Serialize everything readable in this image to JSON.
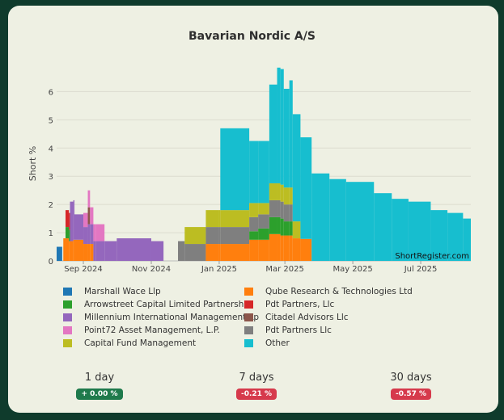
{
  "chart_data": {
    "type": "bar",
    "stacked": true,
    "title": "Bavarian Nordic A/S",
    "xlabel": "",
    "ylabel": "Short %",
    "ylim": [
      0,
      6.9
    ],
    "yticks": [
      0,
      1,
      2,
      3,
      4,
      5,
      6
    ],
    "x_range": [
      "2024-08-08",
      "2025-08-15"
    ],
    "x_ticks": [
      {
        "label": "Sep 2024",
        "date": "2024-09-01"
      },
      {
        "label": "Nov 2024",
        "date": "2024-11-01"
      },
      {
        "label": "Jan 2025",
        "date": "2025-01-01"
      },
      {
        "label": "Mar 2025",
        "date": "2025-03-01"
      },
      {
        "label": "May 2025",
        "date": "2025-05-01"
      },
      {
        "label": "Jul 2025",
        "date": "2025-07-01"
      }
    ],
    "grid": true,
    "legend_position": "bottom",
    "watermark": "ShortRegister.com",
    "series": [
      {
        "name": "Marshall Wace Llp",
        "color": "#1f77b4",
        "points": [
          [
            "2024-08-08",
            "2024-08-13",
            0.5
          ]
        ]
      },
      {
        "name": "Qube Research & Technologies Ltd",
        "color": "#ff7f0e",
        "points": [
          [
            "2024-08-14",
            "2024-08-19",
            0.8
          ],
          [
            "2024-08-19",
            "2024-08-23",
            0.7
          ],
          [
            "2024-08-23",
            "2024-09-01",
            0.75
          ],
          [
            "2024-09-01",
            "2024-09-10",
            0.6
          ],
          [
            "2024-12-20",
            "2025-01-28",
            0.6
          ],
          [
            "2025-01-28",
            "2025-02-15",
            0.75
          ],
          [
            "2025-02-15",
            "2025-02-25",
            0.95
          ],
          [
            "2025-02-25",
            "2025-03-08",
            0.9
          ],
          [
            "2025-03-08",
            "2025-03-15",
            0.8
          ],
          [
            "2025-03-15",
            "2025-03-25",
            0.78
          ]
        ]
      },
      {
        "name": "Arrowstreet Capital Limited Partnership",
        "color": "#2ca02c",
        "points": [
          [
            "2024-08-16",
            "2024-08-20",
            0.4
          ],
          [
            "2025-01-28",
            "2025-02-05",
            0.3
          ],
          [
            "2025-02-05",
            "2025-02-15",
            0.4
          ],
          [
            "2025-02-15",
            "2025-02-28",
            0.6
          ],
          [
            "2025-02-28",
            "2025-03-08",
            0.5
          ]
        ]
      },
      {
        "name": "Pdt Partners, Llc",
        "color": "#d62728",
        "points": [
          [
            "2024-08-16",
            "2024-08-20",
            0.6
          ]
        ]
      },
      {
        "name": "Millennium International Management Lp",
        "color": "#9467bd",
        "points": [
          [
            "2024-08-20",
            "2024-08-24",
            1.4
          ],
          [
            "2024-08-24",
            "2024-09-01",
            0.9
          ],
          [
            "2024-09-01",
            "2024-09-05",
            0.6
          ],
          [
            "2024-09-05",
            "2024-09-12",
            0.7
          ],
          [
            "2024-09-12",
            "2024-10-01",
            0.7
          ],
          [
            "2024-10-01",
            "2024-11-01",
            0.8
          ],
          [
            "2024-11-01",
            "2024-11-12",
            0.7
          ]
        ]
      },
      {
        "name": "Citadel Advisors Llc",
        "color": "#8c564b",
        "points": [
          [
            "2024-09-05",
            "2024-09-07",
            0.6
          ]
        ]
      },
      {
        "name": "Point72 Asset Management, L.P.",
        "color": "#e377c2",
        "points": [
          [
            "2024-09-01",
            "2024-09-05",
            0.5
          ],
          [
            "2024-09-05",
            "2024-09-20",
            0.6
          ]
        ]
      },
      {
        "name": "Pdt Partners Llc",
        "color": "#7f7f7f",
        "points": [
          [
            "2024-11-25",
            "2024-12-01",
            0.7
          ],
          [
            "2024-12-01",
            "2025-01-28",
            0.6
          ],
          [
            "2025-01-28",
            "2025-02-15",
            0.5
          ],
          [
            "2025-02-15",
            "2025-03-08",
            0.6
          ]
        ]
      },
      {
        "name": "Capital Fund Management",
        "color": "#bcbd22",
        "points": [
          [
            "2024-12-01",
            "2025-01-01",
            0.6
          ],
          [
            "2025-01-01",
            "2025-01-28",
            0.6
          ],
          [
            "2025-01-28",
            "2025-02-05",
            0.5
          ],
          [
            "2025-02-05",
            "2025-02-15",
            0.4
          ],
          [
            "2025-02-15",
            "2025-03-08",
            0.6
          ],
          [
            "2025-03-08",
            "2025-03-15",
            0.6
          ]
        ]
      },
      {
        "name": "Other",
        "color": "#17becf",
        "points": [
          [
            "2025-01-02",
            "2025-01-28",
            2.9
          ],
          [
            "2025-01-28",
            "2025-02-05",
            2.2
          ],
          [
            "2025-02-05",
            "2025-02-15",
            2.2
          ],
          [
            "2025-02-15",
            "2025-02-22",
            3.5
          ],
          [
            "2025-02-22",
            "2025-02-28",
            4.1
          ],
          [
            "2025-02-28",
            "2025-03-05",
            3.5
          ],
          [
            "2025-03-05",
            "2025-03-15",
            3.8
          ],
          [
            "2025-03-15",
            "2025-03-25",
            3.6
          ],
          [
            "2025-03-25",
            "2025-04-10",
            3.1
          ],
          [
            "2025-04-10",
            "2025-04-25",
            2.9
          ],
          [
            "2025-04-25",
            "2025-05-20",
            2.8
          ],
          [
            "2025-05-20",
            "2025-06-05",
            2.4
          ],
          [
            "2025-06-05",
            "2025-06-20",
            2.2
          ],
          [
            "2025-06-20",
            "2025-07-10",
            2.1
          ],
          [
            "2025-07-10",
            "2025-07-25",
            1.8
          ],
          [
            "2025-07-25",
            "2025-08-08",
            1.7
          ],
          [
            "2025-08-08",
            "2025-08-15",
            1.5
          ]
        ]
      }
    ]
  },
  "stats": [
    {
      "label": "1 day",
      "value": "+ 0.00 %",
      "trend": "up"
    },
    {
      "label": "7 days",
      "value": "-0.21 %",
      "trend": "down"
    },
    {
      "label": "30 days",
      "value": "-0.57 %",
      "trend": "down"
    }
  ]
}
